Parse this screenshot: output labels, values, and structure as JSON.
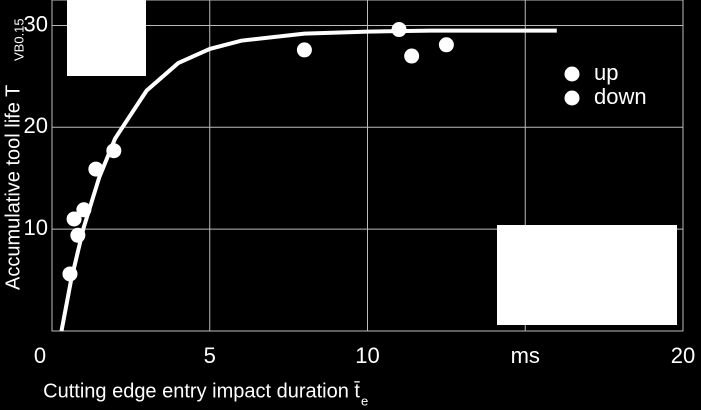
{
  "chart_data": {
    "type": "scatter",
    "x_label": "Cutting edge entry impact duration t̄",
    "x_label_sub": "e",
    "y_label": "Accumulative tool life T",
    "y_label_sub": "VB0.15",
    "xlim": [
      0,
      20
    ],
    "ylim": [
      0,
      32.5
    ],
    "xticks": [
      0,
      5,
      10,
      {
        "value": 15,
        "label": "ms"
      },
      20
    ],
    "yticks": [
      10,
      20,
      30
    ],
    "grid": true,
    "legend": "upper right",
    "series": [
      {
        "name": "up",
        "color": "#ffffff",
        "x": [
          0.57,
          0.7,
          0.82,
          1.01,
          1.39,
          1.96
        ],
        "values": [
          5.6,
          11.0,
          9.4,
          11.9,
          15.9,
          17.7
        ]
      },
      {
        "name": "down",
        "color": "#ffffff",
        "x": [
          8.0,
          11.0,
          11.4,
          12.5
        ],
        "values": [
          27.6,
          29.6,
          27.0,
          28.1
        ]
      }
    ],
    "curve": {
      "color": "#ffffff",
      "x": [
        0.3,
        0.6,
        1,
        1.5,
        2,
        3,
        4,
        5,
        6,
        8,
        10,
        12,
        14,
        16
      ],
      "values": [
        0,
        4.9,
        10.1,
        15.1,
        18.9,
        23.6,
        26.3,
        27.7,
        28.5,
        29.2,
        29.4,
        29.5,
        29.5,
        29.5
      ]
    }
  }
}
